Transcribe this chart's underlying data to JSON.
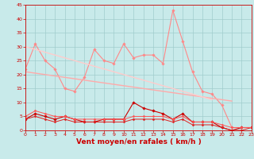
{
  "x": [
    0,
    1,
    2,
    3,
    4,
    5,
    6,
    7,
    8,
    9,
    10,
    11,
    12,
    13,
    14,
    15,
    16,
    17,
    18,
    19,
    20,
    21,
    22,
    23
  ],
  "series": [
    {
      "name": "max_gust",
      "color": "#ff8888",
      "linewidth": 0.8,
      "marker": "D",
      "markersize": 1.8,
      "values": [
        22,
        31,
        25,
        22,
        15,
        14,
        19,
        29,
        25,
        24,
        31,
        26,
        27,
        27,
        24,
        43,
        32,
        21,
        14,
        13,
        9,
        1,
        1,
        null
      ]
    },
    {
      "name": "mean_wind_line",
      "color": "#ffaaaa",
      "linewidth": 1.0,
      "marker": null,
      "markersize": 0,
      "values": [
        21,
        20.5,
        20,
        19.5,
        19,
        18.5,
        18,
        17.5,
        17,
        16.5,
        16,
        15.5,
        15,
        14.5,
        14,
        13.5,
        13,
        12.5,
        12,
        11.5,
        11,
        10.5,
        null,
        null
      ]
    },
    {
      "name": "mean_gust_line",
      "color": "#ffcccc",
      "linewidth": 1.0,
      "marker": null,
      "markersize": 0,
      "values": [
        30,
        29,
        28,
        27,
        26,
        25,
        24,
        23,
        22,
        21,
        20,
        19,
        18,
        17,
        16,
        15,
        14,
        13,
        12,
        11,
        null,
        null,
        null,
        null
      ]
    },
    {
      "name": "wind_speed",
      "color": "#cc0000",
      "linewidth": 0.8,
      "marker": "D",
      "markersize": 1.8,
      "values": [
        4,
        6,
        5,
        4,
        5,
        4,
        3,
        3,
        4,
        4,
        4,
        10,
        8,
        7,
        6,
        4,
        6,
        3,
        3,
        3,
        1,
        0,
        1,
        1
      ]
    },
    {
      "name": "wind_low",
      "color": "#dd2222",
      "linewidth": 0.7,
      "marker": "D",
      "markersize": 1.5,
      "values": [
        4,
        5,
        4,
        3,
        4,
        3,
        3,
        3,
        3,
        3,
        3,
        4,
        4,
        4,
        4,
        3,
        4,
        2,
        2,
        2,
        1,
        0,
        0,
        1
      ]
    },
    {
      "name": "wind_high",
      "color": "#ff5555",
      "linewidth": 0.7,
      "marker": "D",
      "markersize": 1.5,
      "values": [
        5,
        7,
        6,
        5,
        5,
        4,
        4,
        4,
        4,
        4,
        4,
        5,
        5,
        5,
        5,
        4,
        5,
        3,
        3,
        3,
        2,
        1,
        1,
        1
      ]
    }
  ],
  "xlabel": "Vent moyen/en rafales ( km/h )",
  "xlim": [
    0,
    23
  ],
  "ylim": [
    0,
    45
  ],
  "yticks": [
    0,
    5,
    10,
    15,
    20,
    25,
    30,
    35,
    40,
    45
  ],
  "xticks": [
    0,
    1,
    2,
    3,
    4,
    5,
    6,
    7,
    8,
    9,
    10,
    11,
    12,
    13,
    14,
    15,
    16,
    17,
    18,
    19,
    20,
    21,
    22,
    23
  ],
  "background_color": "#c8eaea",
  "grid_color": "#a0cccc",
  "xlabel_color": "#cc0000",
  "tick_color": "#cc0000",
  "tick_fontsize": 4.5,
  "xlabel_fontsize": 6.5
}
